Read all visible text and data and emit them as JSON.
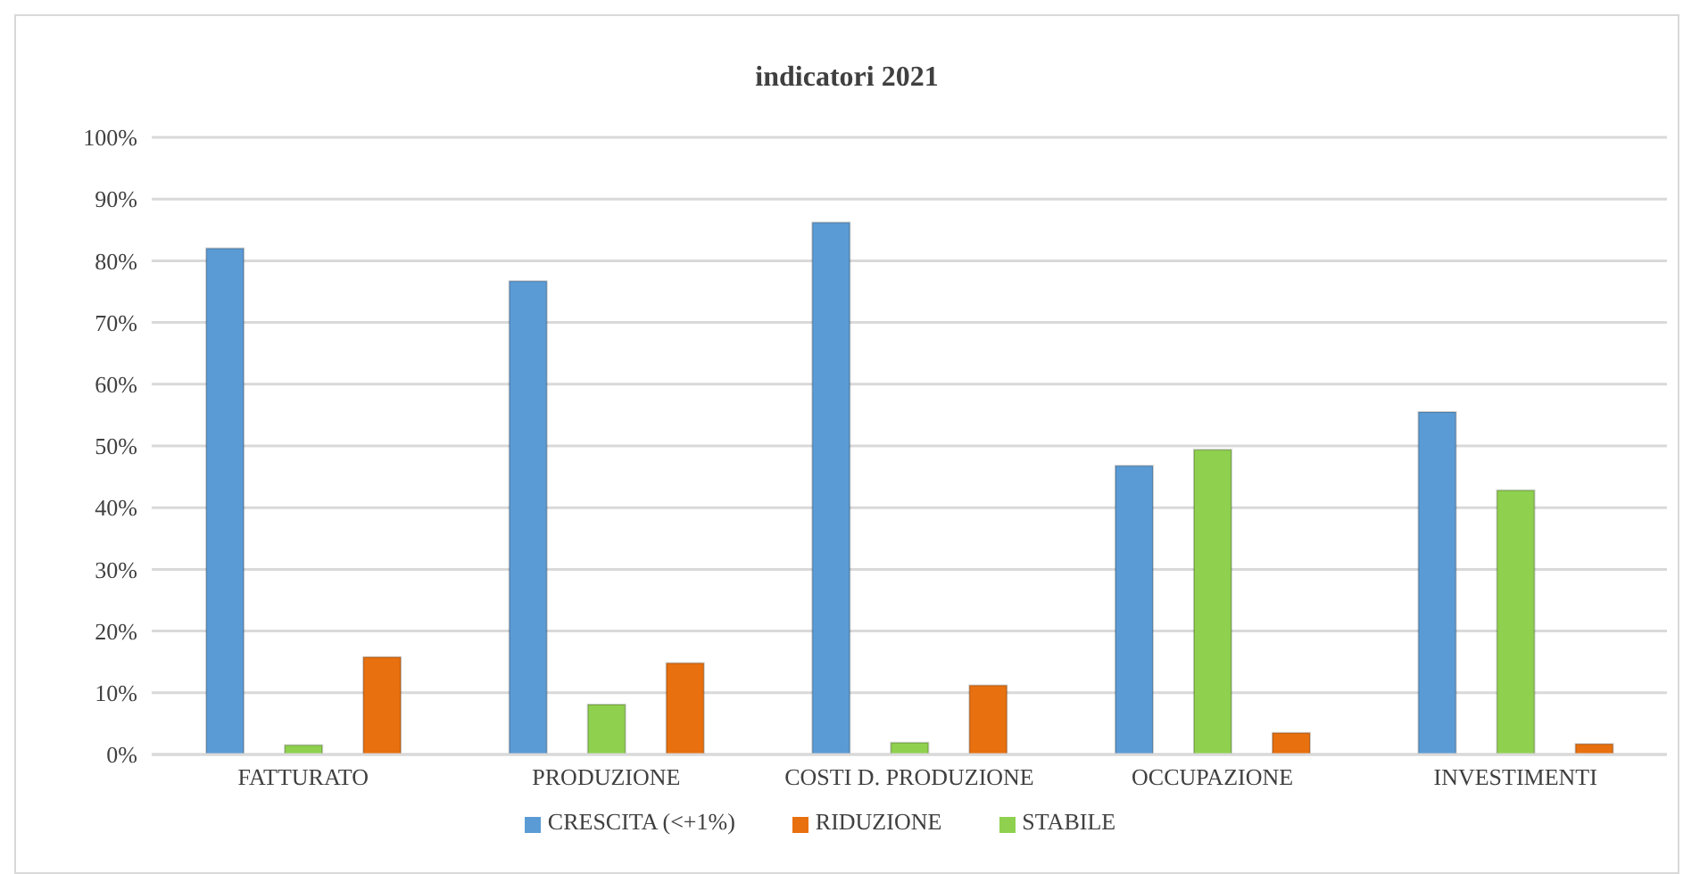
{
  "chart_data": {
    "type": "bar",
    "title": "indicatori 2021",
    "categories": [
      "FATTURATO",
      "PRODUZIONE",
      "COSTI D. PRODUZIONE",
      "OCCUPAZIONE",
      "INVESTIMENTI"
    ],
    "series": [
      {
        "name": "CRESCITA (<+1%)",
        "color": "#5b9bd5",
        "values": [
          82,
          76.7,
          86.2,
          46.8,
          55.5
        ]
      },
      {
        "name": "STABILE",
        "color": "#8fd14f",
        "values": [
          1.5,
          8.1,
          1.9,
          49.4,
          42.8
        ]
      },
      {
        "name": "RIDUZIONE",
        "color": "#e8700f",
        "values": [
          15.8,
          14.8,
          11.2,
          3.5,
          1.7
        ]
      }
    ],
    "ylim": [
      0,
      100
    ],
    "yticks": [
      {
        "value": 0,
        "label": "0%"
      },
      {
        "value": 10,
        "label": "10%"
      },
      {
        "value": 20,
        "label": "20%"
      },
      {
        "value": 30,
        "label": "30%"
      },
      {
        "value": 40,
        "label": "40%"
      },
      {
        "value": 50,
        "label": "50%"
      },
      {
        "value": 60,
        "label": "60%"
      },
      {
        "value": 70,
        "label": "70%"
      },
      {
        "value": 80,
        "label": "80%"
      },
      {
        "value": 90,
        "label": "90%"
      },
      {
        "value": 100,
        "label": "100%"
      }
    ],
    "grid": "y",
    "legend": "bottom"
  }
}
